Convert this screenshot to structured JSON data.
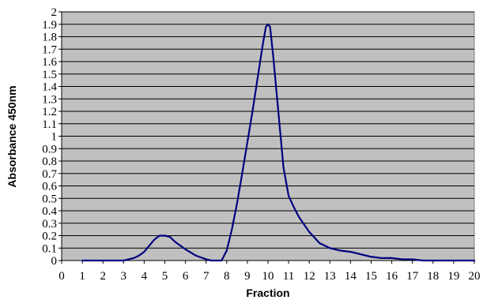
{
  "chart_data": {
    "type": "line",
    "title": "",
    "xlabel": "Fraction",
    "ylabel": "Absorbance 450nm",
    "xlim": [
      0,
      20
    ],
    "ylim": [
      0,
      2
    ],
    "xticks": [
      "0",
      "1",
      "2",
      "3",
      "4",
      "5",
      "6",
      "7",
      "8",
      "9",
      "10",
      "11",
      "12",
      "13",
      "14",
      "15",
      "16",
      "17",
      "18",
      "19",
      "20"
    ],
    "yticks": [
      "0",
      "0.1",
      "0.2",
      "0.3",
      "0.4",
      "0.5",
      "0.6",
      "0.7",
      "0.8",
      "0.9",
      "1",
      "1.1",
      "1.2",
      "1.3",
      "1.4",
      "1.5",
      "1.6",
      "1.7",
      "1.8",
      "1.9",
      "2"
    ],
    "grid": true,
    "legend": "none",
    "colors": {
      "plot_background": "#c0c0c0",
      "gridline": "#000000",
      "series": "#000080"
    },
    "series": [
      {
        "x": [
          1,
          2,
          2.5,
          3,
          3.25,
          3.5,
          3.75,
          4,
          4.25,
          4.5,
          4.75,
          5,
          5.25,
          5.5,
          5.75,
          6,
          6.5,
          7,
          7.25,
          7.5,
          7.75,
          8,
          8.25,
          8.5,
          8.75,
          9,
          9.25,
          9.5,
          9.75,
          9.9,
          10,
          10.1,
          10.25,
          10.5,
          10.75,
          11,
          11.25,
          11.5,
          12,
          12.5,
          13,
          13.5,
          14,
          14.5,
          15,
          15.5,
          16,
          16.5,
          17,
          17.5,
          18,
          19,
          20
        ],
        "values": [
          0,
          0,
          0,
          0,
          0.01,
          0.02,
          0.04,
          0.07,
          0.12,
          0.17,
          0.2,
          0.2,
          0.19,
          0.15,
          0.12,
          0.09,
          0.04,
          0.01,
          0,
          0,
          0,
          0.08,
          0.25,
          0.46,
          0.7,
          0.95,
          1.2,
          1.47,
          1.74,
          1.88,
          1.9,
          1.88,
          1.65,
          1.2,
          0.75,
          0.52,
          0.43,
          0.35,
          0.23,
          0.14,
          0.1,
          0.08,
          0.07,
          0.05,
          0.03,
          0.02,
          0.02,
          0.01,
          0.01,
          0,
          0,
          0,
          0
        ]
      }
    ]
  }
}
